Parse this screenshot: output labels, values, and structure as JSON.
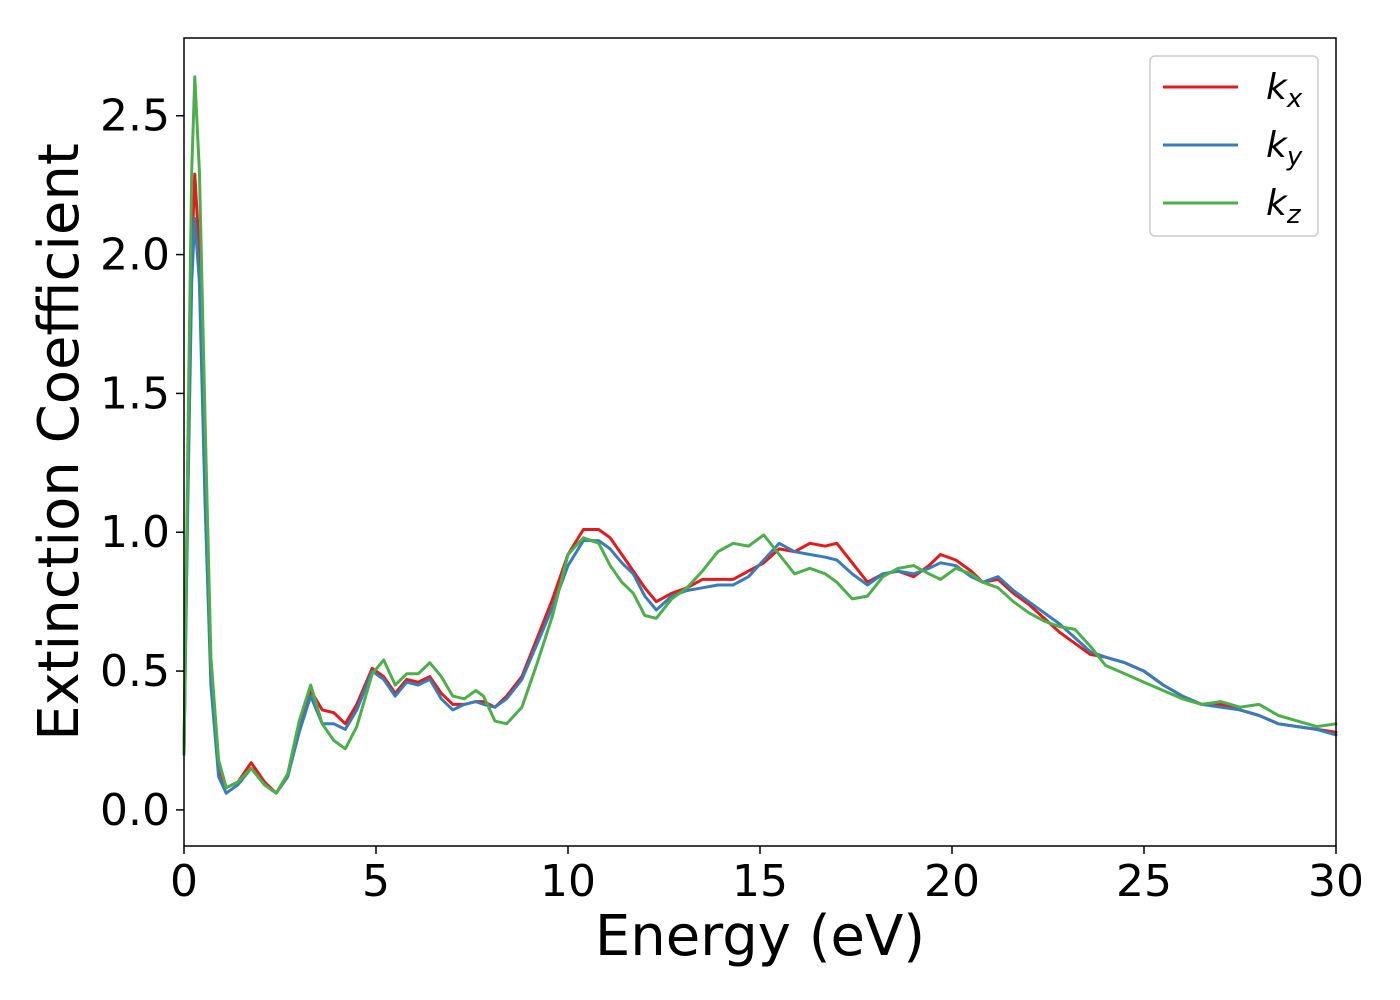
{
  "chart_data": {
    "type": "line",
    "title": "",
    "xlabel": "Energy (eV)",
    "ylabel": "Extinction Coefficient",
    "xlim": [
      0,
      30
    ],
    "ylim": [
      -0.13,
      2.78
    ],
    "xticks": [
      0,
      5,
      10,
      15,
      20,
      25,
      30
    ],
    "xtick_labels": [
      "0",
      "5",
      "10",
      "15",
      "20",
      "25",
      "30"
    ],
    "yticks": [
      0.0,
      0.5,
      1.0,
      1.5,
      2.0,
      2.5
    ],
    "ytick_labels": [
      "0.0",
      "0.5",
      "1.0",
      "1.5",
      "2.0",
      "2.5"
    ],
    "grid": false,
    "legend_position": "top-right",
    "series": [
      {
        "name": "kx",
        "legend_base": "k",
        "legend_sub": "x",
        "color": "#e41a1c",
        "points": [
          [
            0,
            0.2
          ],
          [
            0.1,
            1.2
          ],
          [
            0.2,
            2.0
          ],
          [
            0.28,
            2.29
          ],
          [
            0.4,
            2.0
          ],
          [
            0.55,
            1.2
          ],
          [
            0.7,
            0.5
          ],
          [
            0.9,
            0.15
          ],
          [
            1.1,
            0.08
          ],
          [
            1.4,
            0.1
          ],
          [
            1.75,
            0.17
          ],
          [
            2.1,
            0.1
          ],
          [
            2.4,
            0.06
          ],
          [
            2.7,
            0.12
          ],
          [
            3.0,
            0.3
          ],
          [
            3.3,
            0.43
          ],
          [
            3.6,
            0.36
          ],
          [
            3.9,
            0.35
          ],
          [
            4.2,
            0.31
          ],
          [
            4.5,
            0.38
          ],
          [
            4.9,
            0.51
          ],
          [
            5.2,
            0.48
          ],
          [
            5.5,
            0.42
          ],
          [
            5.8,
            0.47
          ],
          [
            6.1,
            0.46
          ],
          [
            6.4,
            0.48
          ],
          [
            6.7,
            0.42
          ],
          [
            7.0,
            0.38
          ],
          [
            7.3,
            0.38
          ],
          [
            7.6,
            0.39
          ],
          [
            7.8,
            0.39
          ],
          [
            8.1,
            0.37
          ],
          [
            8.4,
            0.41
          ],
          [
            8.8,
            0.48
          ],
          [
            9.2,
            0.62
          ],
          [
            9.6,
            0.76
          ],
          [
            10.0,
            0.92
          ],
          [
            10.4,
            1.01
          ],
          [
            10.8,
            1.01
          ],
          [
            11.1,
            0.98
          ],
          [
            11.4,
            0.92
          ],
          [
            11.7,
            0.86
          ],
          [
            12.0,
            0.8
          ],
          [
            12.3,
            0.75
          ],
          [
            12.7,
            0.78
          ],
          [
            13.1,
            0.8
          ],
          [
            13.5,
            0.83
          ],
          [
            13.9,
            0.83
          ],
          [
            14.3,
            0.83
          ],
          [
            14.7,
            0.86
          ],
          [
            15.1,
            0.89
          ],
          [
            15.5,
            0.94
          ],
          [
            15.9,
            0.93
          ],
          [
            16.3,
            0.96
          ],
          [
            16.7,
            0.95
          ],
          [
            17.0,
            0.96
          ],
          [
            17.4,
            0.89
          ],
          [
            17.8,
            0.82
          ],
          [
            18.2,
            0.85
          ],
          [
            18.6,
            0.86
          ],
          [
            19.0,
            0.84
          ],
          [
            19.4,
            0.88
          ],
          [
            19.7,
            0.92
          ],
          [
            20.1,
            0.9
          ],
          [
            20.5,
            0.86
          ],
          [
            20.8,
            0.82
          ],
          [
            21.2,
            0.83
          ],
          [
            21.6,
            0.78
          ],
          [
            22.0,
            0.74
          ],
          [
            22.4,
            0.69
          ],
          [
            22.8,
            0.64
          ],
          [
            23.2,
            0.6
          ],
          [
            23.6,
            0.56
          ],
          [
            24.0,
            0.55
          ],
          [
            24.5,
            0.53
          ],
          [
            25.0,
            0.5
          ],
          [
            25.5,
            0.45
          ],
          [
            26.0,
            0.41
          ],
          [
            26.5,
            0.38
          ],
          [
            27.0,
            0.38
          ],
          [
            27.5,
            0.36
          ],
          [
            28.0,
            0.34
          ],
          [
            28.5,
            0.31
          ],
          [
            29.0,
            0.3
          ],
          [
            29.5,
            0.29
          ],
          [
            30.0,
            0.28
          ]
        ]
      },
      {
        "name": "ky",
        "legend_base": "k",
        "legend_sub": "y",
        "color": "#377eb8",
        "points": [
          [
            0,
            0.2
          ],
          [
            0.1,
            1.1
          ],
          [
            0.2,
            1.9
          ],
          [
            0.28,
            2.13
          ],
          [
            0.4,
            1.9
          ],
          [
            0.55,
            1.1
          ],
          [
            0.7,
            0.45
          ],
          [
            0.9,
            0.12
          ],
          [
            1.1,
            0.06
          ],
          [
            1.4,
            0.09
          ],
          [
            1.75,
            0.15
          ],
          [
            2.1,
            0.09
          ],
          [
            2.4,
            0.06
          ],
          [
            2.7,
            0.12
          ],
          [
            3.0,
            0.28
          ],
          [
            3.3,
            0.41
          ],
          [
            3.6,
            0.31
          ],
          [
            3.9,
            0.31
          ],
          [
            4.2,
            0.29
          ],
          [
            4.5,
            0.36
          ],
          [
            4.9,
            0.5
          ],
          [
            5.2,
            0.47
          ],
          [
            5.5,
            0.41
          ],
          [
            5.8,
            0.46
          ],
          [
            6.1,
            0.45
          ],
          [
            6.4,
            0.47
          ],
          [
            6.7,
            0.4
          ],
          [
            7.0,
            0.36
          ],
          [
            7.3,
            0.38
          ],
          [
            7.6,
            0.39
          ],
          [
            7.8,
            0.38
          ],
          [
            8.1,
            0.37
          ],
          [
            8.4,
            0.4
          ],
          [
            8.8,
            0.47
          ],
          [
            9.2,
            0.6
          ],
          [
            9.6,
            0.73
          ],
          [
            10.0,
            0.88
          ],
          [
            10.4,
            0.97
          ],
          [
            10.8,
            0.97
          ],
          [
            11.1,
            0.94
          ],
          [
            11.4,
            0.89
          ],
          [
            11.7,
            0.85
          ],
          [
            12.0,
            0.77
          ],
          [
            12.3,
            0.72
          ],
          [
            12.7,
            0.77
          ],
          [
            13.1,
            0.79
          ],
          [
            13.5,
            0.8
          ],
          [
            13.9,
            0.81
          ],
          [
            14.3,
            0.81
          ],
          [
            14.7,
            0.84
          ],
          [
            15.1,
            0.9
          ],
          [
            15.5,
            0.96
          ],
          [
            15.9,
            0.93
          ],
          [
            16.3,
            0.92
          ],
          [
            16.7,
            0.91
          ],
          [
            17.0,
            0.9
          ],
          [
            17.4,
            0.85
          ],
          [
            17.8,
            0.81
          ],
          [
            18.2,
            0.85
          ],
          [
            18.6,
            0.86
          ],
          [
            19.0,
            0.85
          ],
          [
            19.4,
            0.87
          ],
          [
            19.7,
            0.89
          ],
          [
            20.1,
            0.88
          ],
          [
            20.5,
            0.84
          ],
          [
            20.8,
            0.82
          ],
          [
            21.2,
            0.84
          ],
          [
            21.6,
            0.79
          ],
          [
            22.0,
            0.75
          ],
          [
            22.4,
            0.71
          ],
          [
            22.8,
            0.67
          ],
          [
            23.2,
            0.62
          ],
          [
            23.6,
            0.57
          ],
          [
            24.0,
            0.55
          ],
          [
            24.5,
            0.53
          ],
          [
            25.0,
            0.5
          ],
          [
            25.5,
            0.45
          ],
          [
            26.0,
            0.41
          ],
          [
            26.5,
            0.38
          ],
          [
            27.0,
            0.37
          ],
          [
            27.5,
            0.36
          ],
          [
            28.0,
            0.34
          ],
          [
            28.5,
            0.31
          ],
          [
            29.0,
            0.3
          ],
          [
            29.5,
            0.29
          ],
          [
            30.0,
            0.27
          ]
        ]
      },
      {
        "name": "kz",
        "legend_base": "k",
        "legend_sub": "z",
        "color": "#4daf4a",
        "points": [
          [
            0,
            0.2
          ],
          [
            0.1,
            1.3
          ],
          [
            0.2,
            2.3
          ],
          [
            0.28,
            2.64
          ],
          [
            0.4,
            2.3
          ],
          [
            0.55,
            1.4
          ],
          [
            0.7,
            0.55
          ],
          [
            0.9,
            0.18
          ],
          [
            1.1,
            0.08
          ],
          [
            1.4,
            0.1
          ],
          [
            1.75,
            0.15
          ],
          [
            2.1,
            0.09
          ],
          [
            2.4,
            0.06
          ],
          [
            2.7,
            0.13
          ],
          [
            3.0,
            0.32
          ],
          [
            3.3,
            0.45
          ],
          [
            3.6,
            0.31
          ],
          [
            3.9,
            0.25
          ],
          [
            4.2,
            0.22
          ],
          [
            4.5,
            0.3
          ],
          [
            4.9,
            0.49
          ],
          [
            5.2,
            0.54
          ],
          [
            5.5,
            0.45
          ],
          [
            5.8,
            0.49
          ],
          [
            6.1,
            0.49
          ],
          [
            6.4,
            0.53
          ],
          [
            6.7,
            0.48
          ],
          [
            7.0,
            0.41
          ],
          [
            7.3,
            0.4
          ],
          [
            7.6,
            0.43
          ],
          [
            7.8,
            0.41
          ],
          [
            8.1,
            0.32
          ],
          [
            8.4,
            0.31
          ],
          [
            8.8,
            0.37
          ],
          [
            9.2,
            0.53
          ],
          [
            9.6,
            0.7
          ],
          [
            10.0,
            0.92
          ],
          [
            10.4,
            0.98
          ],
          [
            10.8,
            0.96
          ],
          [
            11.1,
            0.88
          ],
          [
            11.4,
            0.82
          ],
          [
            11.7,
            0.78
          ],
          [
            12.0,
            0.7
          ],
          [
            12.3,
            0.69
          ],
          [
            12.7,
            0.76
          ],
          [
            13.1,
            0.8
          ],
          [
            13.5,
            0.86
          ],
          [
            13.9,
            0.93
          ],
          [
            14.3,
            0.96
          ],
          [
            14.7,
            0.95
          ],
          [
            15.1,
            0.99
          ],
          [
            15.5,
            0.92
          ],
          [
            15.9,
            0.85
          ],
          [
            16.3,
            0.87
          ],
          [
            16.7,
            0.85
          ],
          [
            17.0,
            0.82
          ],
          [
            17.4,
            0.76
          ],
          [
            17.8,
            0.77
          ],
          [
            18.2,
            0.84
          ],
          [
            18.6,
            0.87
          ],
          [
            19.0,
            0.88
          ],
          [
            19.4,
            0.85
          ],
          [
            19.7,
            0.83
          ],
          [
            20.1,
            0.87
          ],
          [
            20.5,
            0.85
          ],
          [
            20.8,
            0.82
          ],
          [
            21.2,
            0.8
          ],
          [
            21.6,
            0.75
          ],
          [
            22.0,
            0.71
          ],
          [
            22.4,
            0.68
          ],
          [
            22.8,
            0.66
          ],
          [
            23.2,
            0.65
          ],
          [
            23.6,
            0.59
          ],
          [
            24.0,
            0.52
          ],
          [
            24.5,
            0.49
          ],
          [
            25.0,
            0.46
          ],
          [
            25.5,
            0.43
          ],
          [
            26.0,
            0.4
          ],
          [
            26.5,
            0.38
          ],
          [
            27.0,
            0.39
          ],
          [
            27.5,
            0.37
          ],
          [
            28.0,
            0.38
          ],
          [
            28.5,
            0.34
          ],
          [
            29.0,
            0.32
          ],
          [
            29.5,
            0.3
          ],
          [
            30.0,
            0.31
          ]
        ]
      }
    ]
  }
}
